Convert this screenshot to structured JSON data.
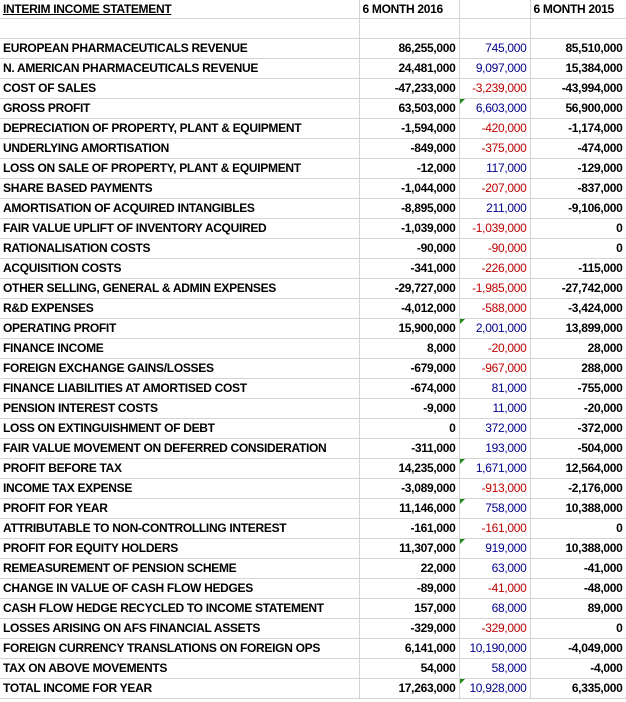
{
  "sheet": {
    "title": "INTERIM INCOME STATEMENT",
    "columns": [
      "",
      "6 MONTH 2016",
      "",
      "6 MONTH 2015"
    ],
    "colors": {
      "positive_change": "#00008b",
      "negative_change": "#c00000",
      "error_flag": "#1e8a1e",
      "gridline": "#d4d4d4"
    },
    "rows": [
      {
        "label": "EUROPEAN PHARMACEUTICALS REVENUE",
        "y2016": "86,255,000",
        "change": "745,000",
        "y2015": "85,510,000",
        "bold": false,
        "sign": "pos",
        "flag": false
      },
      {
        "label": "N. AMERICAN PHARMACEUTICALS REVENUE",
        "y2016": "24,481,000",
        "change": "9,097,000",
        "y2015": "15,384,000",
        "bold": false,
        "sign": "pos",
        "flag": false
      },
      {
        "label": "COST OF SALES",
        "y2016": "-47,233,000",
        "change": "-3,239,000",
        "y2015": "-43,994,000",
        "bold": false,
        "sign": "neg",
        "flag": false
      },
      {
        "label": "GROSS PROFIT",
        "y2016": "63,503,000",
        "change": "6,603,000",
        "y2015": "56,900,000",
        "bold": true,
        "sign": "pos",
        "flag": true
      },
      {
        "label": "DEPRECIATION OF PROPERTY, PLANT & EQUIPMENT",
        "y2016": "-1,594,000",
        "change": "-420,000",
        "y2015": "-1,174,000",
        "bold": false,
        "sign": "neg",
        "flag": false
      },
      {
        "label": "UNDERLYING AMORTISATION",
        "y2016": "-849,000",
        "change": "-375,000",
        "y2015": "-474,000",
        "bold": false,
        "sign": "neg",
        "flag": false
      },
      {
        "label": "LOSS ON SALE OF PROPERTY, PLANT & EQUIPMENT",
        "y2016": "-12,000",
        "change": "117,000",
        "y2015": "-129,000",
        "bold": false,
        "sign": "pos",
        "flag": false
      },
      {
        "label": "SHARE BASED PAYMENTS",
        "y2016": "-1,044,000",
        "change": "-207,000",
        "y2015": "-837,000",
        "bold": false,
        "sign": "neg",
        "flag": false
      },
      {
        "label": "AMORTISATION OF ACQUIRED INTANGIBLES",
        "y2016": "-8,895,000",
        "change": "211,000",
        "y2015": "-9,106,000",
        "bold": false,
        "sign": "pos",
        "flag": false
      },
      {
        "label": "FAIR VALUE UPLIFT OF INVENTORY ACQUIRED",
        "y2016": "-1,039,000",
        "change": "-1,039,000",
        "y2015": "0",
        "bold": false,
        "sign": "neg",
        "flag": false
      },
      {
        "label": "RATIONALISATION COSTS",
        "y2016": "-90,000",
        "change": "-90,000",
        "y2015": "0",
        "bold": false,
        "sign": "neg",
        "flag": false
      },
      {
        "label": "ACQUISITION COSTS",
        "y2016": "-341,000",
        "change": "-226,000",
        "y2015": "-115,000",
        "bold": false,
        "sign": "neg",
        "flag": false
      },
      {
        "label": "OTHER SELLING, GENERAL & ADMIN EXPENSES",
        "y2016": "-29,727,000",
        "change": "-1,985,000",
        "y2015": "-27,742,000",
        "bold": false,
        "sign": "neg",
        "flag": false
      },
      {
        "label": "R&D EXPENSES",
        "y2016": "-4,012,000",
        "change": "-588,000",
        "y2015": "-3,424,000",
        "bold": false,
        "sign": "neg",
        "flag": false
      },
      {
        "label": "OPERATING PROFIT",
        "y2016": "15,900,000",
        "change": "2,001,000",
        "y2015": "13,899,000",
        "bold": true,
        "sign": "pos",
        "flag": true
      },
      {
        "label": "FINANCE INCOME",
        "y2016": "8,000",
        "change": "-20,000",
        "y2015": "28,000",
        "bold": false,
        "sign": "neg",
        "flag": false
      },
      {
        "label": "FOREIGN EXCHANGE GAINS/LOSSES",
        "y2016": "-679,000",
        "change": "-967,000",
        "y2015": "288,000",
        "bold": false,
        "sign": "neg",
        "flag": false
      },
      {
        "label": "FINANCE LIABILITIES AT AMORTISED COST",
        "y2016": "-674,000",
        "change": "81,000",
        "y2015": "-755,000",
        "bold": false,
        "sign": "pos",
        "flag": false
      },
      {
        "label": "PENSION INTEREST COSTS",
        "y2016": "-9,000",
        "change": "11,000",
        "y2015": "-20,000",
        "bold": false,
        "sign": "pos",
        "flag": false
      },
      {
        "label": "LOSS ON EXTINGUISHMENT OF DEBT",
        "y2016": "0",
        "change": "372,000",
        "y2015": "-372,000",
        "bold": false,
        "sign": "pos",
        "flag": false
      },
      {
        "label": "FAIR VALUE MOVEMENT ON DEFERRED CONSIDERATION",
        "y2016": "-311,000",
        "change": "193,000",
        "y2015": "-504,000",
        "bold": false,
        "sign": "pos",
        "flag": false
      },
      {
        "label": "PROFIT BEFORE TAX",
        "y2016": "14,235,000",
        "change": "1,671,000",
        "y2015": "12,564,000",
        "bold": true,
        "sign": "pos",
        "flag": true
      },
      {
        "label": "INCOME TAX EXPENSE",
        "y2016": "-3,089,000",
        "change": "-913,000",
        "y2015": "-2,176,000",
        "bold": false,
        "sign": "neg",
        "flag": false
      },
      {
        "label": "PROFIT FOR YEAR",
        "y2016": "11,146,000",
        "change": "758,000",
        "y2015": "10,388,000",
        "bold": true,
        "sign": "pos",
        "flag": true
      },
      {
        "label": "ATTRIBUTABLE TO NON-CONTROLLING INTEREST",
        "y2016": "-161,000",
        "change": "-161,000",
        "y2015": "0",
        "bold": true,
        "sign": "neg",
        "flag": false
      },
      {
        "label": "PROFIT FOR EQUITY HOLDERS",
        "y2016": "11,307,000",
        "change": "919,000",
        "y2015": "10,388,000",
        "bold": true,
        "sign": "pos",
        "flag": true
      },
      {
        "label": "REMEASUREMENT OF PENSION SCHEME",
        "y2016": "22,000",
        "change": "63,000",
        "y2015": "-41,000",
        "bold": false,
        "sign": "pos",
        "flag": false
      },
      {
        "label": "CHANGE IN VALUE OF CASH FLOW HEDGES",
        "y2016": "-89,000",
        "change": "-41,000",
        "y2015": "-48,000",
        "bold": false,
        "sign": "neg",
        "flag": false
      },
      {
        "label": "CASH FLOW HEDGE RECYCLED TO INCOME STATEMENT",
        "y2016": "157,000",
        "change": "68,000",
        "y2015": "89,000",
        "bold": false,
        "sign": "pos",
        "flag": false
      },
      {
        "label": "LOSSES ARISING ON AFS FINANCIAL ASSETS",
        "y2016": "-329,000",
        "change": "-329,000",
        "y2015": "0",
        "bold": false,
        "sign": "neg",
        "flag": false
      },
      {
        "label": "FOREIGN CURRENCY TRANSLATIONS ON FOREIGN OPS",
        "y2016": "6,141,000",
        "change": "10,190,000",
        "y2015": "-4,049,000",
        "bold": false,
        "sign": "pos",
        "flag": false
      },
      {
        "label": "TAX ON ABOVE MOVEMENTS",
        "y2016": "54,000",
        "change": "58,000",
        "y2015": "-4,000",
        "bold": false,
        "sign": "pos",
        "flag": false
      },
      {
        "label": "TOTAL INCOME FOR YEAR",
        "y2016": "17,263,000",
        "change": "10,928,000",
        "y2015": "6,335,000",
        "bold": true,
        "sign": "pos",
        "flag": true
      }
    ]
  }
}
